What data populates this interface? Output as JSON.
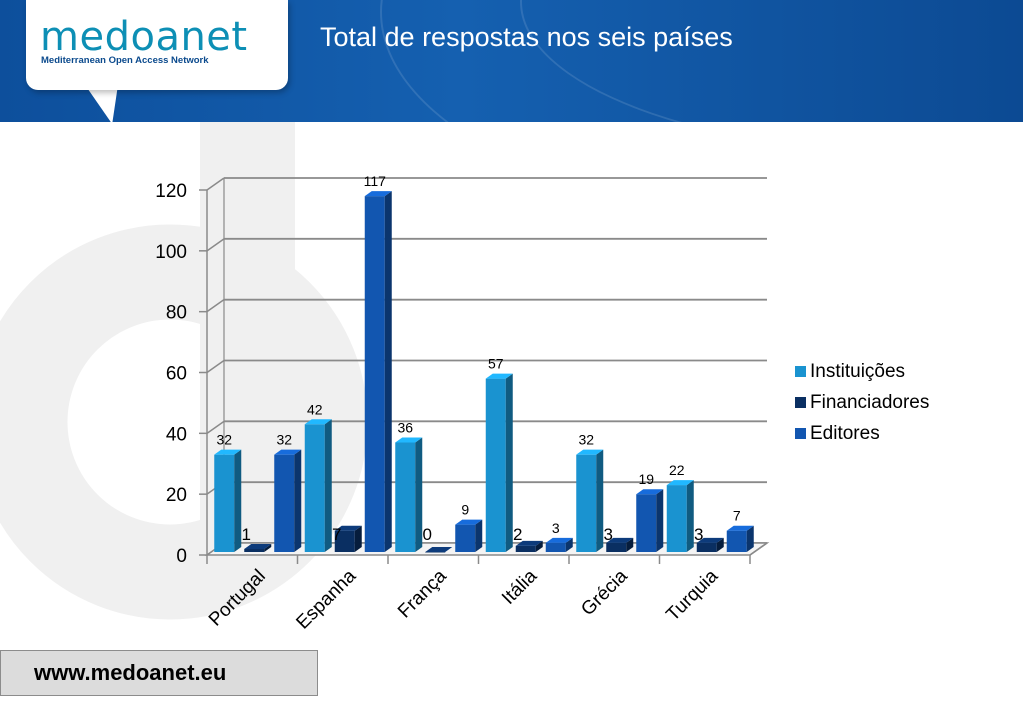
{
  "header": {
    "logo_text": "medoanet",
    "logo_subtitle": "Mediterranean Open Access Network",
    "title": "Total de respostas nos seis países"
  },
  "footer": {
    "url": "www.medoanet.eu"
  },
  "colors": {
    "header_bg": "#0d4f9c",
    "series_1": "#1a93d0",
    "series_2": "#0a2f62",
    "series_3": "#1256b0"
  },
  "chart_data": {
    "type": "bar",
    "title": "",
    "xlabel": "",
    "ylabel": "",
    "categories": [
      "Portugal",
      "Espanha",
      "França",
      "Itália",
      "Grécia",
      "Turquia"
    ],
    "series": [
      {
        "name": "Instituições",
        "values": [
          32,
          42,
          36,
          57,
          32,
          22
        ]
      },
      {
        "name": "Financiadores",
        "values": [
          1,
          7,
          0,
          2,
          3,
          3
        ]
      },
      {
        "name": "Editores",
        "values": [
          32,
          117,
          9,
          3,
          19,
          7
        ]
      }
    ],
    "ylim": [
      0,
      120
    ],
    "yticks": [
      0,
      20,
      40,
      60,
      80,
      100,
      120
    ],
    "grid": true,
    "legend": "right",
    "style": "3d-bar"
  }
}
